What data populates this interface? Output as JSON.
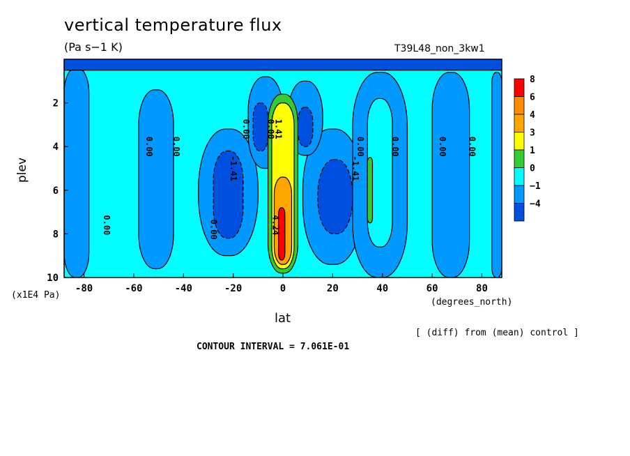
{
  "chart_data": {
    "type": "heatmap",
    "title": "vertical temperature flux",
    "units": "(Pa s−1 K)",
    "run_id": "T39L48_non_3kw1",
    "xlabel": "lat",
    "ylabel": "plev",
    "x_units": "(degrees_north)",
    "y_units": "(x1E4 Pa)",
    "x_ticks": [
      -80,
      -60,
      -40,
      -20,
      0,
      20,
      40,
      60,
      80
    ],
    "x_tick_labels": [
      "-80",
      "-60",
      "-40",
      "-20",
      "0",
      "20",
      "40",
      "60",
      "80"
    ],
    "y_ticks": [
      2,
      4,
      6,
      8,
      10
    ],
    "y_tick_labels": [
      "2",
      "4",
      "6",
      "8",
      "10"
    ],
    "xlim": [
      -88,
      88
    ],
    "ylim": [
      0,
      10
    ],
    "y_inverted": true,
    "colorbar": {
      "levels": [
        "8",
        "6",
        "4",
        "3",
        "1",
        "0",
        "−1",
        "−4"
      ],
      "colors": [
        "#ff0000",
        "#ff8c00",
        "#ffa500",
        "#ffff00",
        "#33cc33",
        "#00ffff",
        "#0099ff",
        "#0050e0"
      ]
    },
    "contour_labels": [
      "0.00",
      "0.00",
      "0.00",
      "0.00",
      "0.00",
      "0.00",
      "0.00",
      "0.00",
      "0.00",
      "0.00",
      "-1.41",
      "-1.41",
      "1.41",
      "4.24"
    ],
    "contour_interval_label": "CONTOUR INTERVAL = 7.061E-01",
    "note": "[ (diff) from (mean) control ]",
    "bands": [
      {
        "color": "#00ffff",
        "lat_min": -88,
        "lat_max": 88,
        "plev_min": 0,
        "plev_max": 10
      },
      {
        "color": "#0099ff",
        "lat_min": -88,
        "lat_max": -78,
        "plev_min": 0.4,
        "plev_max": 10
      },
      {
        "color": "#0099ff",
        "lat_min": -58,
        "lat_max": -44,
        "plev_min": 1.4,
        "plev_max": 9.6
      },
      {
        "color": "#0099ff",
        "lat_min": -34,
        "lat_max": -10,
        "plev_min": 3.2,
        "plev_max": 9.0
      },
      {
        "color": "#0050e0",
        "lat_min": -28,
        "lat_max": -16,
        "plev_min": 4.2,
        "plev_max": 8.2
      },
      {
        "color": "#0099ff",
        "lat_min": -14,
        "lat_max": 0,
        "plev_min": 0.8,
        "plev_max": 5.0
      },
      {
        "color": "#0050e0",
        "lat_min": -12,
        "lat_max": -6,
        "plev_min": 2.0,
        "plev_max": 4.2
      },
      {
        "color": "#0099ff",
        "lat_min": 8,
        "lat_max": 32,
        "plev_min": 3.2,
        "plev_max": 9.4
      },
      {
        "color": "#0050e0",
        "lat_min": 14,
        "lat_max": 28,
        "plev_min": 4.6,
        "plev_max": 8.0
      },
      {
        "color": "#0099ff",
        "lat_min": 2,
        "lat_max": 16,
        "plev_min": 1.0,
        "plev_max": 4.4
      },
      {
        "color": "#0050e0",
        "lat_min": 6,
        "lat_max": 12,
        "plev_min": 2.2,
        "plev_max": 4.0
      },
      {
        "color": "#0099ff",
        "lat_min": 28,
        "lat_max": 50,
        "plev_min": 0.6,
        "plev_max": 10
      },
      {
        "color": "#00ffff",
        "lat_min": 34,
        "lat_max": 44,
        "plev_min": 1.8,
        "plev_max": 8.6
      },
      {
        "color": "#33cc33",
        "lat_min": 34,
        "lat_max": 36,
        "plev_min": 4.5,
        "plev_max": 7.5
      },
      {
        "color": "#0099ff",
        "lat_min": 60,
        "lat_max": 75,
        "plev_min": 0.6,
        "plev_max": 10
      },
      {
        "color": "#0099ff",
        "lat_min": 84,
        "lat_max": 88,
        "plev_min": 0.6,
        "plev_max": 10
      },
      {
        "color": "#33cc33",
        "lat_min": -6,
        "lat_max": 6,
        "plev_min": 1.6,
        "plev_max": 9.8
      },
      {
        "color": "#ffff00",
        "lat_min": -4.5,
        "lat_max": 4.5,
        "plev_min": 2.0,
        "plev_max": 9.6
      },
      {
        "color": "#ffa500",
        "lat_min": -3.5,
        "lat_max": 3.5,
        "plev_min": 5.4,
        "plev_max": 9.4
      },
      {
        "color": "#ff0000",
        "lat_min": -1.8,
        "lat_max": 0.8,
        "plev_min": 6.8,
        "plev_max": 9.2
      },
      {
        "color": "#0050e0",
        "lat_min": -88,
        "lat_max": 88,
        "plev_min": 0,
        "plev_max": 0.5
      }
    ]
  }
}
